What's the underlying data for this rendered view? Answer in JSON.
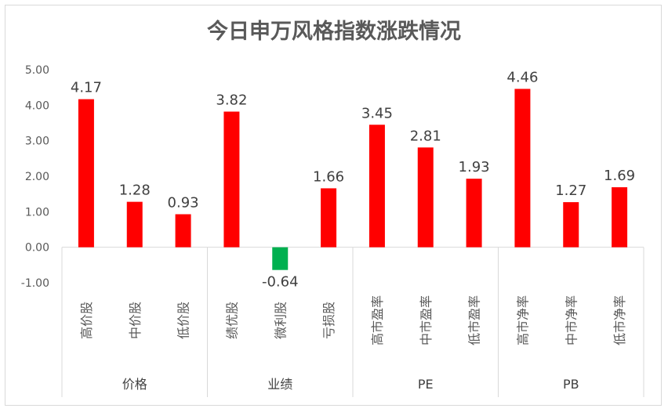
{
  "chart_data": {
    "type": "bar",
    "title": "今日申万风格指数涨跌情况",
    "categories": [
      "高价股",
      "中价股",
      "低价股",
      "绩优股",
      "微利股",
      "亏损股",
      "高市盈率",
      "中市盈率",
      "低市盈率",
      "高市净率",
      "中市净率",
      "低市净率"
    ],
    "groups": [
      {
        "name": "价格",
        "categories": [
          "高价股",
          "中价股",
          "低价股"
        ]
      },
      {
        "name": "业绩",
        "categories": [
          "绩优股",
          "微利股",
          "亏损股"
        ]
      },
      {
        "name": "PE",
        "categories": [
          "高市盈率",
          "中市盈率",
          "低市盈率"
        ]
      },
      {
        "name": "PB",
        "categories": [
          "高市净率",
          "中市净率",
          "低市净率"
        ]
      }
    ],
    "values": [
      4.17,
      1.28,
      0.93,
      3.82,
      -0.64,
      1.66,
      3.45,
      2.81,
      1.93,
      4.46,
      1.27,
      1.69
    ],
    "value_labels": [
      "4.17",
      "1.28",
      "0.93",
      "3.82",
      "-0.64",
      "1.66",
      "3.45",
      "2.81",
      "1.93",
      "4.46",
      "1.27",
      "1.69"
    ],
    "ylim": [
      -1.0,
      5.0
    ],
    "yticks": [
      "-1.00",
      "0.00",
      "1.00",
      "2.00",
      "3.00",
      "4.00",
      "5.00"
    ],
    "positive_color": "#ff0000",
    "negative_color": "#00b050",
    "grid": false,
    "legend": "none"
  }
}
